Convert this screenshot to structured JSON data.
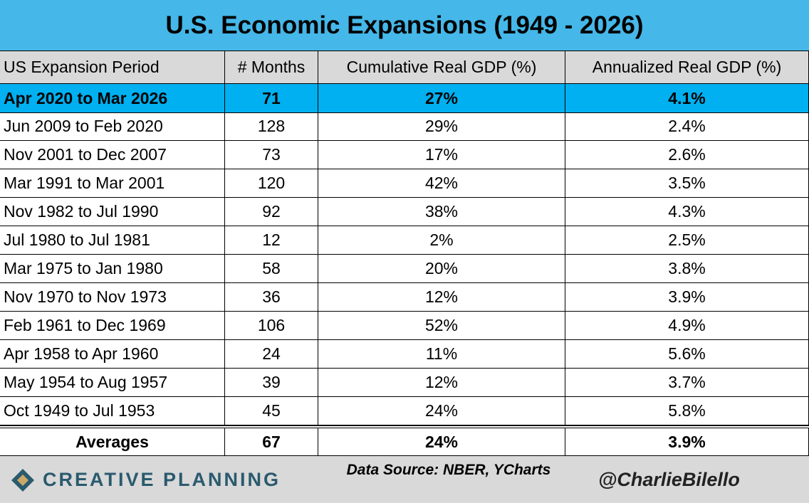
{
  "header": {
    "title": "U.S. Economic Expansions (1949 - 2026)"
  },
  "table": {
    "columns": [
      "US Expansion Period",
      "# Months",
      "Cumulative Real GDP (%)",
      "Annualized Real GDP (%)"
    ],
    "rows": [
      [
        "Apr 2020 to Mar 2026",
        "71",
        "27%",
        "4.1%"
      ],
      [
        "Jun 2009 to Feb 2020",
        "128",
        "29%",
        "2.4%"
      ],
      [
        "Nov 2001 to Dec 2007",
        "73",
        "17%",
        "2.6%"
      ],
      [
        "Mar 1991 to Mar 2001",
        "120",
        "42%",
        "3.5%"
      ],
      [
        "Nov 1982 to Jul 1990",
        "92",
        "38%",
        "4.3%"
      ],
      [
        "Jul 1980 to Jul 1981",
        "12",
        "2%",
        "2.5%"
      ],
      [
        "Mar 1975 to Jan 1980",
        "58",
        "20%",
        "3.8%"
      ],
      [
        "Nov 1970 to Nov 1973",
        "36",
        "12%",
        "3.9%"
      ],
      [
        "Feb 1961 to Dec 1969",
        "106",
        "52%",
        "4.9%"
      ],
      [
        "Apr 1958 to Apr 1960",
        "24",
        "11%",
        "5.6%"
      ],
      [
        "May 1954 to Aug 1957",
        "39",
        "12%",
        "3.7%"
      ],
      [
        "Oct 1949 to Jul 1953",
        "45",
        "24%",
        "5.8%"
      ]
    ],
    "averages": [
      "Averages",
      "67",
      "24%",
      "3.9%"
    ]
  },
  "footer": {
    "logo": "CREATIVE PLANNING",
    "source": "Data Source: NBER, YCharts",
    "handle": "@CharlieBilello"
  }
}
